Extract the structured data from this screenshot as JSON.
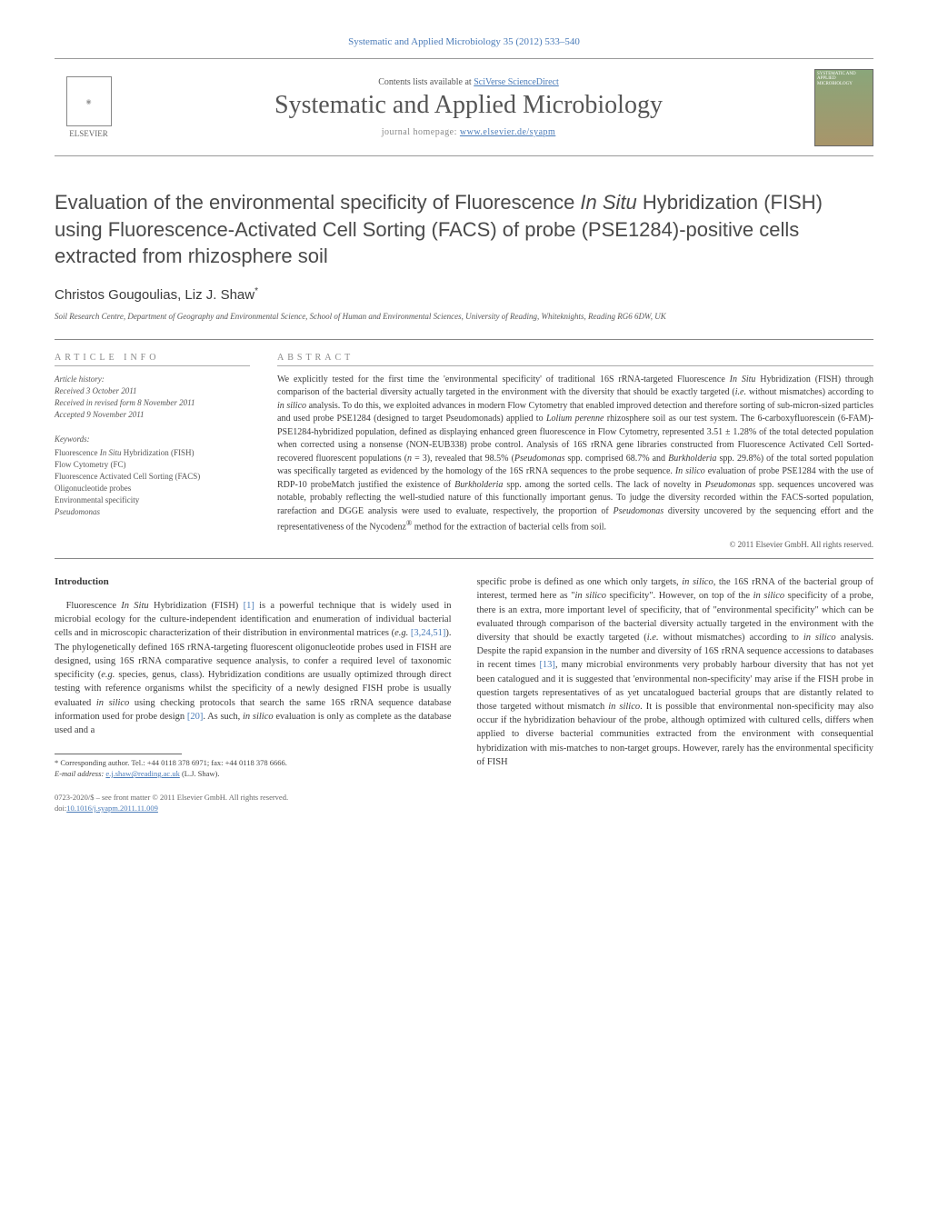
{
  "header": {
    "topLink": "Systematic and Applied Microbiology 35 (2012) 533–540",
    "contentsPrefix": "Contents lists available at ",
    "contentsLink": "SciVerse ScienceDirect",
    "journalName": "Systematic and Applied Microbiology",
    "homepagePrefix": "journal homepage: ",
    "homepageLink": "www.elsevier.de/syapm",
    "elsevierLabel": "ELSEVIER",
    "coverLabel": "SYSTEMATIC AND APPLIED MICROBIOLOGY"
  },
  "article": {
    "title_html": "Evaluation of the environmental specificity of Fluorescence <span class='ital'>In Situ</span> Hybridization (FISH) using Fluorescence-Activated Cell Sorting (FACS) of probe (PSE1284)-positive cells extracted from rhizosphere soil",
    "authors_html": "Christos Gougoulias, Liz J. Shaw<sup>*</sup>",
    "affiliation": "Soil Research Centre, Department of Geography and Environmental Science, School of Human and Environmental Sciences, University of Reading, Whiteknights, Reading RG6 6DW, UK"
  },
  "info": {
    "sectionLabel": "article info",
    "history": {
      "label": "Article history:",
      "received": "Received 3 October 2011",
      "revised": "Received in revised form 8 November 2011",
      "accepted": "Accepted 9 November 2011"
    },
    "keywords": {
      "label": "Keywords:",
      "items_html": [
        "Fluorescence <span class='ital'>In Situ</span> Hybridization (FISH)",
        "Flow Cytometry (FC)",
        "Fluorescence Activated Cell Sorting (FACS)",
        "Oligonucleotide probes",
        "Environmental specificity",
        "<span class='ital'>Pseudomonas</span>"
      ]
    }
  },
  "abstract": {
    "sectionLabel": "abstract",
    "text_html": "We explicitly tested for the first time the 'environmental specificity' of traditional 16S rRNA-targeted Fluorescence <span class='ital'>In Situ</span> Hybridization (FISH) through comparison of the bacterial diversity actually targeted in the environment with the diversity that should be exactly targeted (<span class='ital'>i.e.</span> without mismatches) according to <span class='ital'>in silico</span> analysis. To do this, we exploited advances in modern Flow Cytometry that enabled improved detection and therefore sorting of sub-micron-sized particles and used probe PSE1284 (designed to target Pseudomonads) applied to <span class='ital'>Lolium perenne</span> rhizosphere soil as our test system. The 6-carboxyfluorescein (6-FAM)-PSE1284-hybridized population, defined as displaying enhanced green fluorescence in Flow Cytometry, represented 3.51 ± 1.28% of the total detected population when corrected using a nonsense (NON-EUB338) probe control. Analysis of 16S rRNA gene libraries constructed from Fluorescence Activated Cell Sorted-recovered fluorescent populations (<span class='ital'>n</span> = 3), revealed that 98.5% (<span class='ital'>Pseudomonas</span> spp. comprised 68.7% and <span class='ital'>Burkholderia</span> spp. 29.8%) of the total sorted population was specifically targeted as evidenced by the homology of the 16S rRNA sequences to the probe sequence. <span class='ital'>In silico</span> evaluation of probe PSE1284 with the use of RDP-10 probeMatch justified the existence of <span class='ital'>Burkholderia</span> spp. among the sorted cells. The lack of novelty in <span class='ital'>Pseudomonas</span> spp. sequences uncovered was notable, probably reflecting the well-studied nature of this functionally important genus. To judge the diversity recorded within the FACS-sorted population, rarefaction and DGGE analysis were used to evaluate, respectively, the proportion of <span class='ital'>Pseudomonas</span> diversity uncovered by the sequencing effort and the representativeness of the Nycodenz<sup>®</sup> method for the extraction of bacterial cells from soil.",
    "copyright": "© 2011 Elsevier GmbH. All rights reserved."
  },
  "body": {
    "introHeading": "Introduction",
    "p1_html": "Fluorescence <span class='ital'>In Situ</span> Hybridization (FISH) <a class='ref' href='#'>[1]</a> is a powerful technique that is widely used in microbial ecology for the culture-independent identification and enumeration of individual bacterial cells and in microscopic characterization of their distribution in environmental matrices (<span class='ital'>e.g.</span> <a class='ref' href='#'>[3,24,51]</a>). The phylogenetically defined 16S rRNA-targeting fluorescent oligonucleotide probes used in FISH are designed, using 16S rRNA comparative sequence analysis, to confer a required level of taxonomic specificity (<span class='ital'>e.g.</span> species, genus, class). Hybridization conditions are usually optimized through direct testing with reference organisms whilst the specificity of a newly designed FISH probe is usually evaluated <span class='ital'>in silico</span> using checking protocols that search the same 16S rRNA sequence database information used for probe design <a class='ref' href='#'>[20]</a>. As such, <span class='ital'>in silico</span> evaluation is only as complete as the database used and a",
    "p2_html": "specific probe is defined as one which only targets, <span class='ital'>in silico</span>, the 16S rRNA of the bacterial group of interest, termed here as \"<span class='ital'>in silico</span> specificity\". However, on top of the <span class='ital'>in silico</span> specificity of a probe, there is an extra, more important level of specificity, that of \"environmental specificity\" which can be evaluated through comparison of the bacterial diversity actually targeted in the environment with the diversity that should be exactly targeted (<span class='ital'>i.e.</span> without mismatches) according to <span class='ital'>in silico</span> analysis. Despite the rapid expansion in the number and diversity of 16S rRNA sequence accessions to databases in recent times <a class='ref' href='#'>[13]</a>, many microbial environments very probably harbour diversity that has not yet been catalogued and it is suggested that 'environmental non-specificity' may arise if the FISH probe in question targets representatives of as yet uncatalogued bacterial groups that are distantly related to those targeted without mismatch <span class='ital'>in silico</span>. It is possible that environmental non-specificity may also occur if the hybridization behaviour of the probe, although optimized with cultured cells, differs when applied to diverse bacterial communities extracted from the environment with consequential hybridization with mis-matches to non-target groups. However, rarely has the environmental specificity of FISH"
  },
  "footnote": {
    "correspond_html": "* Corresponding author. Tel.: +44 0118 378 6971; fax: +44 0118 378 6666.",
    "email_label": "E-mail address: ",
    "email": "e.j.shaw@reading.ac.uk",
    "email_suffix": " (L.J. Shaw)."
  },
  "footer": {
    "line1": "0723-2020/$ – see front matter © 2011 Elsevier GmbH. All rights reserved.",
    "doiPrefix": "doi:",
    "doi": "10.1016/j.syapm.2011.11.009"
  },
  "colors": {
    "link": "#4a7bb8",
    "text": "#3a3a3a",
    "muted": "#888"
  }
}
